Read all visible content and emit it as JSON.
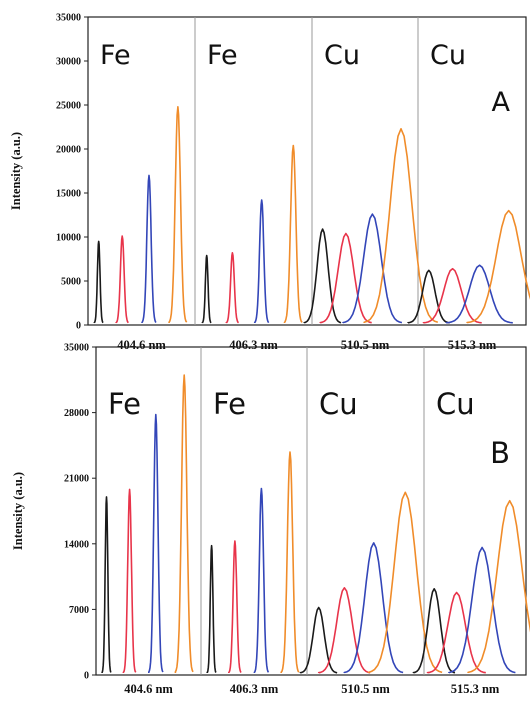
{
  "colors": {
    "black": "#1a1a1a",
    "red": "#e8344a",
    "blue": "#3346b8",
    "orange": "#f08c2a",
    "divider": "#9a9a9a",
    "axis": "#222222"
  },
  "chart_data": [
    {
      "type": "line",
      "panel_label": "A",
      "ylabel": "Intensity (a.u.)",
      "ylim": [
        0,
        35000
      ],
      "yticks": [
        0,
        5000,
        10000,
        15000,
        20000,
        25000,
        30000,
        35000
      ],
      "ytick_labels": [
        "0",
        "5000",
        "10000",
        "15000",
        "20000",
        "25000",
        "30000",
        "35000"
      ],
      "grid": false,
      "sections": [
        {
          "element": "Fe",
          "wavelength_label": "404.6 nm",
          "peaks": [
            {
              "color": "black",
              "value": 9500
            },
            {
              "color": "red",
              "value": 10100
            },
            {
              "color": "blue",
              "value": 17000
            },
            {
              "color": "orange",
              "value": 24800
            }
          ]
        },
        {
          "element": "Fe",
          "wavelength_label": "406.3 nm",
          "peaks": [
            {
              "color": "black",
              "value": 7900
            },
            {
              "color": "red",
              "value": 8200
            },
            {
              "color": "blue",
              "value": 14200
            },
            {
              "color": "orange",
              "value": 20400
            }
          ]
        },
        {
          "element": "Cu",
          "wavelength_label": "510.5 nm",
          "peaks": [
            {
              "color": "black",
              "value": 10900
            },
            {
              "color": "red",
              "value": 10400
            },
            {
              "color": "blue",
              "value": 12600
            },
            {
              "color": "orange",
              "value": 22300
            }
          ]
        },
        {
          "element": "Cu",
          "wavelength_label": "515.3 nm",
          "peaks": [
            {
              "color": "black",
              "value": 6200
            },
            {
              "color": "red",
              "value": 6400
            },
            {
              "color": "blue",
              "value": 6800
            },
            {
              "color": "orange",
              "value": 13000
            }
          ]
        }
      ]
    },
    {
      "type": "line",
      "panel_label": "B",
      "ylabel": "Intensity (a.u.)",
      "ylim": [
        0,
        35000
      ],
      "yticks": [
        0,
        7000,
        14000,
        21000,
        28000,
        35000
      ],
      "ytick_labels": [
        "0",
        "7000",
        "14000",
        "21000",
        "28000",
        "35000"
      ],
      "grid": false,
      "sections": [
        {
          "element": "Fe",
          "wavelength_label": "404.6 nm",
          "peaks": [
            {
              "color": "black",
              "value": 19000
            },
            {
              "color": "red",
              "value": 19800
            },
            {
              "color": "blue",
              "value": 27800
            },
            {
              "color": "orange",
              "value": 32000
            }
          ]
        },
        {
          "element": "Fe",
          "wavelength_label": "406.3 nm",
          "peaks": [
            {
              "color": "black",
              "value": 13800
            },
            {
              "color": "red",
              "value": 14300
            },
            {
              "color": "blue",
              "value": 19900
            },
            {
              "color": "orange",
              "value": 23800
            }
          ]
        },
        {
          "element": "Cu",
          "wavelength_label": "510.5 nm",
          "peaks": [
            {
              "color": "black",
              "value": 7200
            },
            {
              "color": "red",
              "value": 9300
            },
            {
              "color": "blue",
              "value": 14100
            },
            {
              "color": "orange",
              "value": 19500
            }
          ]
        },
        {
          "element": "Cu",
          "wavelength_label": "515.3 nm",
          "peaks": [
            {
              "color": "black",
              "value": 9200
            },
            {
              "color": "red",
              "value": 8800
            },
            {
              "color": "blue",
              "value": 13600
            },
            {
              "color": "orange",
              "value": 18600
            }
          ]
        }
      ]
    }
  ]
}
